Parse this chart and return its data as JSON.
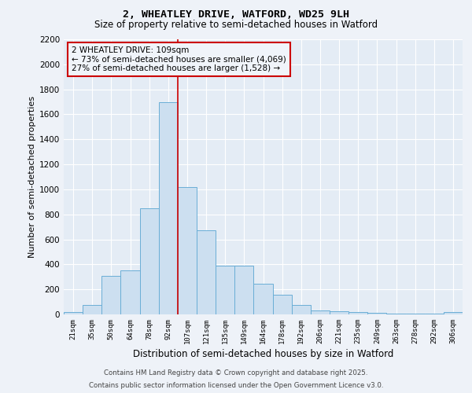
{
  "title_line1": "2, WHEATLEY DRIVE, WATFORD, WD25 9LH",
  "title_line2": "Size of property relative to semi-detached houses in Watford",
  "xlabel": "Distribution of semi-detached houses by size in Watford",
  "ylabel": "Number of semi-detached properties",
  "categories": [
    "21sqm",
    "35sqm",
    "50sqm",
    "64sqm",
    "78sqm",
    "92sqm",
    "107sqm",
    "121sqm",
    "135sqm",
    "149sqm",
    "164sqm",
    "178sqm",
    "192sqm",
    "206sqm",
    "221sqm",
    "235sqm",
    "249sqm",
    "263sqm",
    "278sqm",
    "292sqm",
    "306sqm"
  ],
  "values": [
    20,
    75,
    310,
    350,
    850,
    1700,
    1020,
    670,
    390,
    390,
    245,
    155,
    75,
    30,
    25,
    20,
    10,
    5,
    5,
    5,
    20
  ],
  "bar_color": "#ccdff0",
  "bar_edge_color": "#6aaed6",
  "property_line_color": "#cc0000",
  "property_line_idx": 5.5,
  "annotation_text": "2 WHEATLEY DRIVE: 109sqm\n← 73% of semi-detached houses are smaller (4,069)\n27% of semi-detached houses are larger (1,528) →",
  "annotation_box_color": "#cc0000",
  "annotation_bg_color": "#f0f4fa",
  "ylim": [
    0,
    2200
  ],
  "yticks": [
    0,
    200,
    400,
    600,
    800,
    1000,
    1200,
    1400,
    1600,
    1800,
    2000,
    2200
  ],
  "footer_line1": "Contains HM Land Registry data © Crown copyright and database right 2025.",
  "footer_line2": "Contains public sector information licensed under the Open Government Licence v3.0.",
  "bg_color": "#eef2f8",
  "plot_bg_color": "#e4ecf5"
}
